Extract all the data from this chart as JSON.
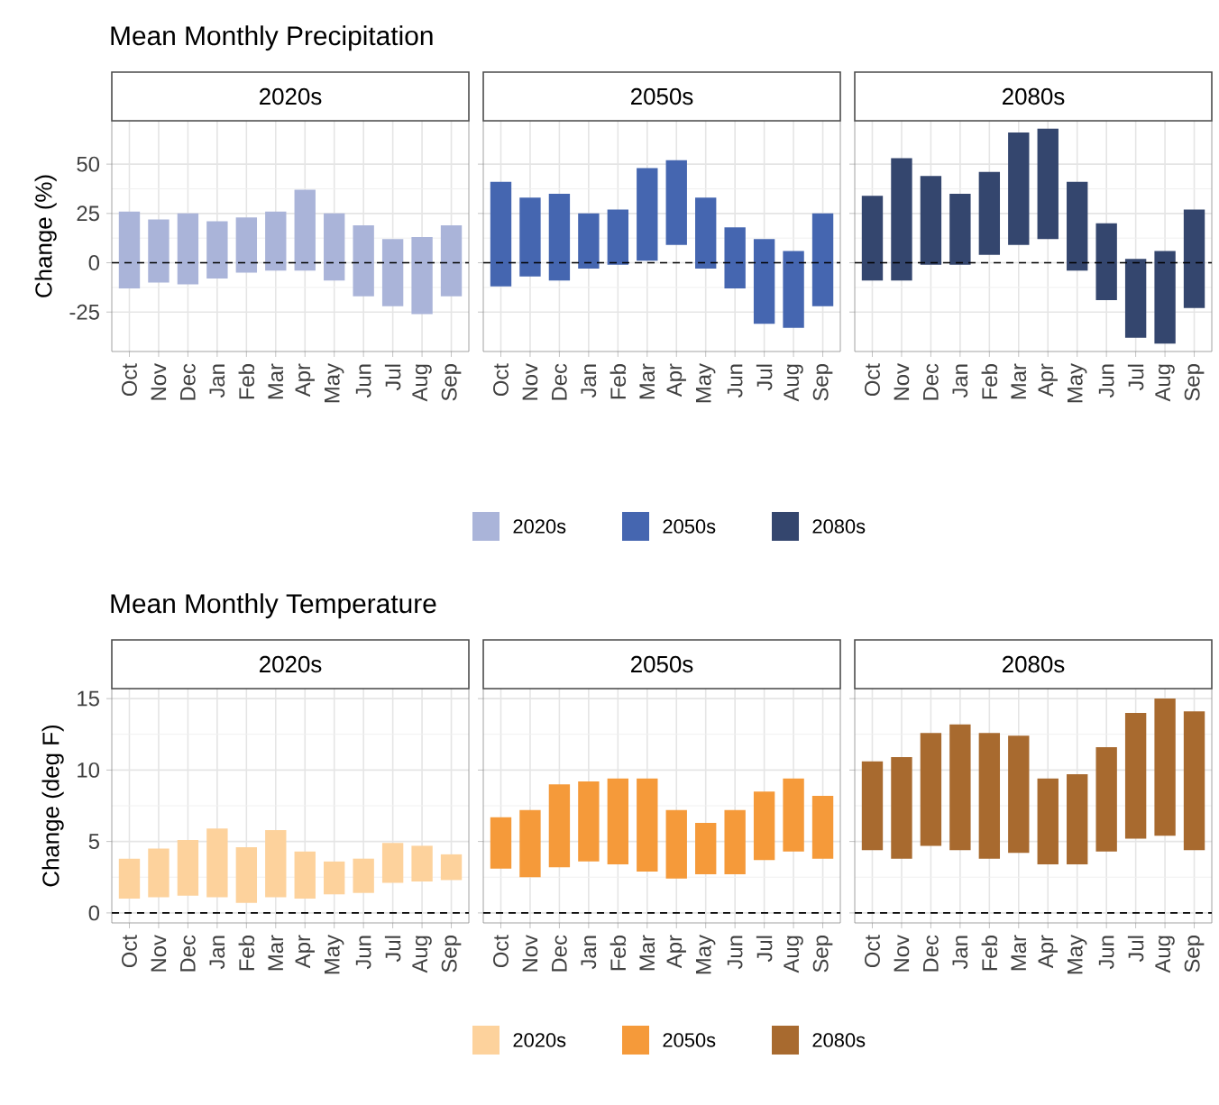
{
  "chart_data": [
    {
      "type": "bar",
      "title": "Mean Monthly Precipitation",
      "subtitle": "2020s",
      "ylabel": "Change (%)",
      "categories": [
        "Oct",
        "Nov",
        "Dec",
        "Jan",
        "Feb",
        "Mar",
        "Apr",
        "May",
        "Jun",
        "Jul",
        "Aug",
        "Sep"
      ],
      "series": [
        {
          "name": "2020s",
          "color": "#aab4d9",
          "base": [
            -13,
            -10,
            -11,
            -8,
            -5,
            -4,
            -4,
            -9,
            -17,
            -22,
            -26,
            -17
          ],
          "values": [
            39,
            32,
            36,
            29,
            28,
            30,
            41,
            34,
            36,
            34,
            39,
            36
          ]
        }
      ],
      "ylim": [
        -45,
        72
      ],
      "yticks": [
        -25,
        0,
        25,
        50
      ],
      "grid": true,
      "ref_lines": [
        {
          "axis": "y",
          "value": 0,
          "line_style": "dashed"
        }
      ],
      "legend": "bottom"
    },
    {
      "type": "bar",
      "subtitle": "2050s",
      "categories": [
        "Oct",
        "Nov",
        "Dec",
        "Jan",
        "Feb",
        "Mar",
        "Apr",
        "May",
        "Jun",
        "Jul",
        "Aug",
        "Sep"
      ],
      "series": [
        {
          "name": "2050s",
          "color": "#4566b0",
          "base": [
            -12,
            -7,
            -9,
            -3,
            -1,
            1,
            9,
            -3,
            -13,
            -31,
            -33,
            -22
          ],
          "values": [
            53,
            40,
            44,
            28,
            28,
            47,
            43,
            36,
            31,
            43,
            39,
            47
          ]
        }
      ],
      "ylim": [
        -45,
        72
      ],
      "yticks": [
        -25,
        0,
        25,
        50
      ],
      "tick_labels": "x",
      "grid": true,
      "ref_lines": [
        {
          "axis": "y",
          "value": 0,
          "line_style": "dashed"
        }
      ],
      "legend": "bottom"
    },
    {
      "type": "bar",
      "subtitle": "2080s",
      "categories": [
        "Oct",
        "Nov",
        "Dec",
        "Jan",
        "Feb",
        "Mar",
        "Apr",
        "May",
        "Jun",
        "Jul",
        "Aug",
        "Sep"
      ],
      "series": [
        {
          "name": "2080s",
          "color": "#34466e",
          "base": [
            -9,
            -9,
            -1,
            -1,
            4,
            9,
            12,
            -4,
            -19,
            -38,
            -41,
            -23
          ],
          "values": [
            43,
            62,
            45,
            36,
            42,
            57,
            56,
            45,
            39,
            40,
            47,
            50
          ]
        }
      ],
      "ylim": [
        -45,
        72
      ],
      "yticks": [
        -25,
        0,
        25,
        50
      ],
      "tick_labels": "x",
      "grid": true,
      "ref_lines": [
        {
          "axis": "y",
          "value": 0,
          "line_style": "dashed"
        }
      ],
      "legend": "bottom"
    },
    {
      "type": "bar",
      "title": "Mean Monthly Temperature",
      "subtitle": "2020s",
      "ylabel": "Change (deg F)",
      "categories": [
        "Oct",
        "Nov",
        "Dec",
        "Jan",
        "Feb",
        "Mar",
        "Apr",
        "May",
        "Jun",
        "Jul",
        "Aug",
        "Sep"
      ],
      "series": [
        {
          "name": "2020s",
          "color": "#fdd29c",
          "base": [
            1.0,
            1.1,
            1.2,
            1.1,
            0.7,
            1.1,
            1.0,
            1.3,
            1.4,
            2.1,
            2.2,
            2.3
          ],
          "values": [
            2.8,
            3.4,
            3.9,
            4.8,
            3.9,
            4.7,
            3.3,
            2.3,
            2.4,
            2.8,
            2.5,
            1.8
          ]
        }
      ],
      "ylim": [
        -0.7,
        15.7
      ],
      "yticks": [
        0,
        5,
        10,
        15
      ],
      "grid": true,
      "ref_lines": [
        {
          "axis": "y",
          "value": 0,
          "line_style": "dashed"
        }
      ],
      "legend": "bottom"
    },
    {
      "type": "bar",
      "subtitle": "2050s",
      "categories": [
        "Oct",
        "Nov",
        "Dec",
        "Jan",
        "Feb",
        "Mar",
        "Apr",
        "May",
        "Jun",
        "Jul",
        "Aug",
        "Sep"
      ],
      "series": [
        {
          "name": "2050s",
          "color": "#f59a3a",
          "base": [
            3.1,
            2.5,
            3.2,
            3.6,
            3.4,
            2.9,
            2.4,
            2.7,
            2.7,
            3.7,
            4.3,
            3.8
          ],
          "values": [
            3.6,
            4.7,
            5.8,
            5.6,
            6.0,
            6.5,
            4.8,
            3.6,
            4.5,
            4.8,
            5.1,
            4.4
          ]
        }
      ],
      "ylim": [
        -0.7,
        15.7
      ],
      "yticks": [
        0,
        5,
        10,
        15
      ],
      "tick_labels": "x",
      "grid": true,
      "ref_lines": [
        {
          "axis": "y",
          "value": 0,
          "line_style": "dashed"
        }
      ],
      "legend": "bottom"
    },
    {
      "type": "bar",
      "subtitle": "2080s",
      "categories": [
        "Oct",
        "Nov",
        "Dec",
        "Jan",
        "Feb",
        "Mar",
        "Apr",
        "May",
        "Jun",
        "Jul",
        "Aug",
        "Sep"
      ],
      "series": [
        {
          "name": "2080s",
          "color": "#a86a2f",
          "base": [
            4.4,
            3.8,
            4.7,
            4.4,
            3.8,
            4.2,
            3.4,
            3.4,
            4.3,
            5.2,
            5.4,
            4.4
          ],
          "values": [
            6.2,
            7.1,
            7.9,
            8.8,
            8.8,
            8.2,
            6.0,
            6.3,
            7.3,
            8.8,
            9.6,
            9.7
          ]
        }
      ],
      "ylim": [
        -0.7,
        15.7
      ],
      "yticks": [
        0,
        5,
        10,
        15
      ],
      "tick_labels": "x",
      "grid": true,
      "ref_lines": [
        {
          "axis": "y",
          "value": 0,
          "line_style": "dashed"
        }
      ],
      "legend": "bottom"
    }
  ]
}
